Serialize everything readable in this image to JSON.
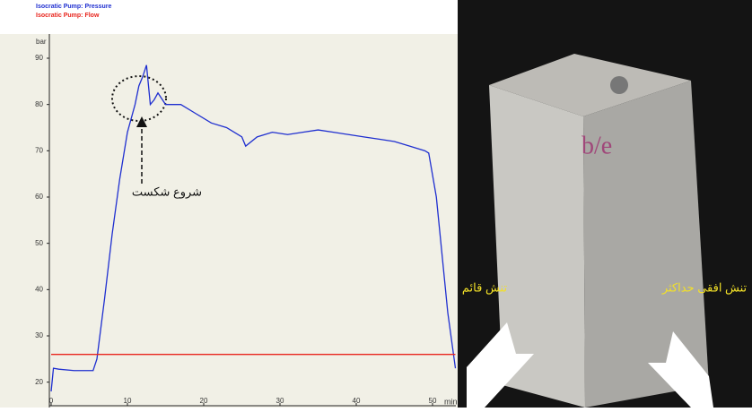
{
  "chart_data": {
    "type": "line",
    "y_label": "bar",
    "x_label": "min",
    "annotation": "شروع شکست",
    "xlim": [
      0,
      53
    ],
    "ylim": [
      18,
      96
    ],
    "xticks": [
      0,
      10,
      20,
      30,
      40,
      50
    ],
    "yticks": [
      20,
      30,
      40,
      50,
      60,
      70,
      80,
      90
    ],
    "series": [
      {
        "name": "Isocratic Pump: Pressure",
        "color": "#1f2fd0",
        "x": [
          0,
          0.3,
          1,
          3,
          5.5,
          6,
          7,
          8,
          9,
          10,
          11,
          11.5,
          12,
          12.5,
          13,
          13.5,
          14,
          15,
          17,
          19,
          21,
          23,
          25,
          25.5,
          27,
          29,
          31,
          33,
          35,
          37,
          39,
          41,
          43,
          45,
          47,
          49,
          49.5,
          50.5,
          52,
          53
        ],
        "values": [
          18,
          23,
          22.8,
          22.5,
          22.5,
          25,
          38,
          52,
          64,
          74,
          80,
          84,
          86,
          88.5,
          80,
          81,
          82.5,
          80,
          80,
          78,
          76,
          75,
          73,
          71,
          73,
          74,
          73.5,
          74,
          74.5,
          74,
          73.5,
          73,
          72.5,
          72,
          71,
          70,
          69.5,
          60,
          35,
          23
        ]
      },
      {
        "name": "Isocratic Pump: Flow",
        "color": "#e8241c",
        "x": [
          0,
          53
        ],
        "values": [
          26,
          26
        ]
      }
    ]
  },
  "photo": {
    "mark": "b/e",
    "label_left": "تنش قائم",
    "label_right": "تنش افقی حداکثر"
  }
}
